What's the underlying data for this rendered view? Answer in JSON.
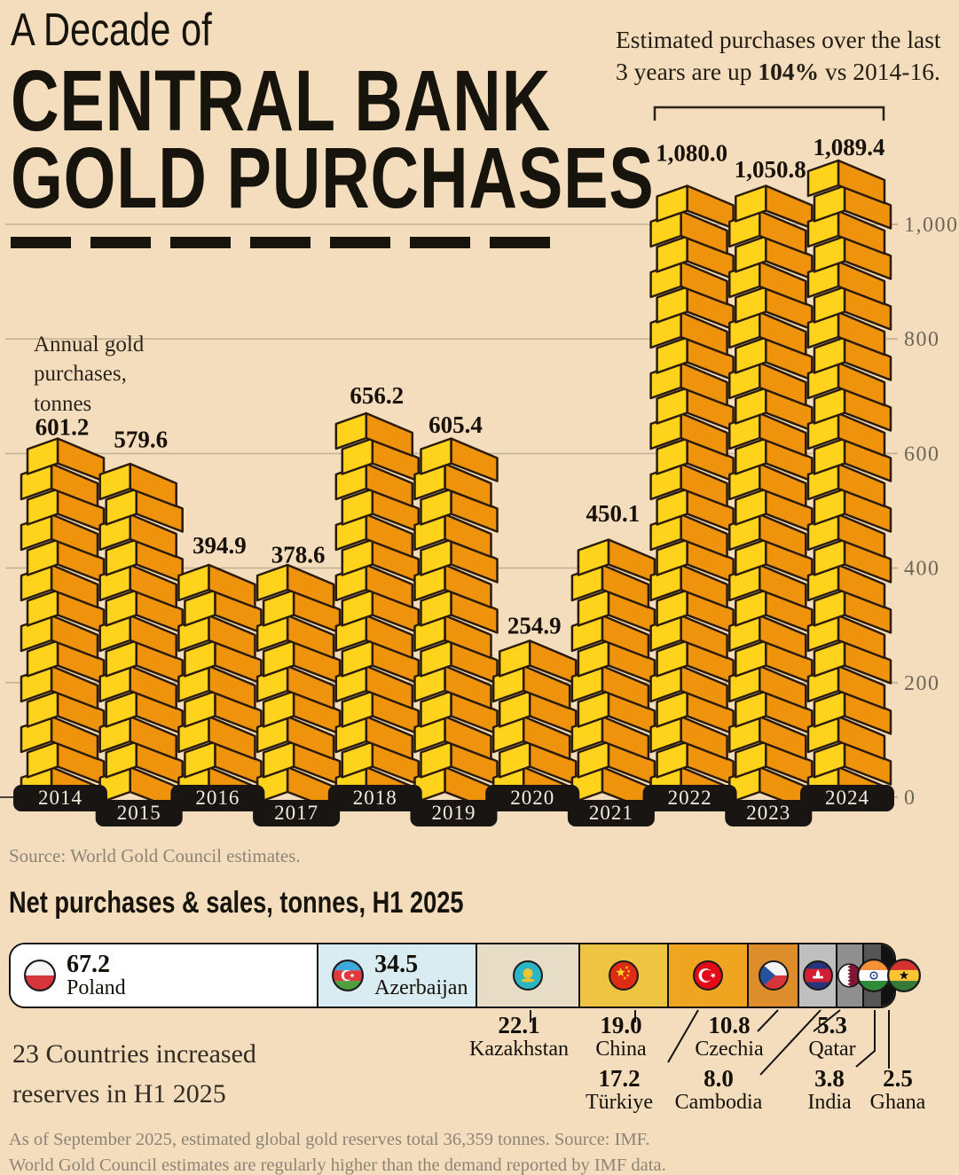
{
  "header": {
    "kicker": "A Decade of",
    "title_line1": "CENTRAL BANK",
    "title_line2": "GOLD PURCHASES",
    "annotation_line1": "Estimated purchases over the last",
    "annotation_pre": "3 years are up ",
    "annotation_bold": "104%",
    "annotation_post": " vs 2014-16."
  },
  "chart": {
    "axis_note": "Annual gold purchases, tonnes",
    "source": "Source: World Gold Council estimates."
  },
  "chart_data": [
    {
      "type": "bar",
      "title": "A Decade of Central Bank Gold Purchases",
      "categories": [
        "2014",
        "2015",
        "2016",
        "2017",
        "2018",
        "2019",
        "2020",
        "2021",
        "2022",
        "2023",
        "2024"
      ],
      "values": [
        601.2,
        579.6,
        394.9,
        378.6,
        656.2,
        605.4,
        254.9,
        450.1,
        1080.0,
        1050.8,
        1089.4
      ],
      "value_labels": [
        "601.2",
        "579.6",
        "394.9",
        "378.6",
        "656.2",
        "605.4",
        "254.9",
        "450.1",
        "1,080.0",
        "1,050.8",
        "1,089.4"
      ],
      "ylabel": "Annual gold purchases, tonnes",
      "yticks": [
        0,
        200,
        400,
        600,
        800,
        1000
      ],
      "ytick_labels": [
        "0",
        "200",
        "400",
        "600",
        "800",
        "1,000"
      ],
      "ylim": [
        0,
        1100
      ],
      "grid": true,
      "legend": "none",
      "bracket": {
        "from": "2022",
        "to": "2024",
        "note": "Estimated purchases over the last 3 years are up 104% vs 2014-16."
      }
    },
    {
      "type": "bar",
      "title": "Net purchases & sales, tonnes, H1 2025",
      "categories": [
        "Poland",
        "Azerbaijan",
        "Kazakhstan",
        "China",
        "Türkiye",
        "Czechia",
        "Cambodia",
        "Qatar",
        "India",
        "Ghana"
      ],
      "values": [
        67.2,
        34.5,
        22.1,
        19.0,
        17.2,
        10.8,
        8.0,
        5.3,
        3.8,
        2.5
      ],
      "value_labels": [
        "67.2",
        "34.5",
        "22.1",
        "19.0",
        "17.2",
        "10.8",
        "8.0",
        "5.3",
        "3.8",
        "2.5"
      ],
      "note": "23 Countries increased reserves in H1 2025"
    }
  ],
  "bottom": {
    "section_title": "Net purchases & sales, tonnes, H1 2025",
    "note_line1": "23 Countries increased",
    "note_line2": "reserves in H1 2025",
    "footer_line1": "As of September 2025, estimated global gold reserves total 36,359 tonnes. Source: IMF.",
    "footer_line2": "World Gold Council estimates are regularly higher than the demand reported by IMF data."
  },
  "colors": {
    "background": "#f3ddbd",
    "ink": "#17130d",
    "gold_yellow": "#ffd21c",
    "gold_orange": "#f0930c",
    "bar_outline": "#2a1b08",
    "grid": "#c4b297",
    "tick_label": "#6e6557",
    "muted": "#8d8476",
    "pill_bg": "#181512",
    "pill_text": "#f3ecdf",
    "segments": [
      "#ffffff",
      "#d9ecf1",
      "#e7dcc6",
      "#f0c443",
      "#f0a521",
      "#dd8e2b",
      "#bfbfbf",
      "#8f8f8f",
      "#565656",
      "#121212"
    ]
  }
}
